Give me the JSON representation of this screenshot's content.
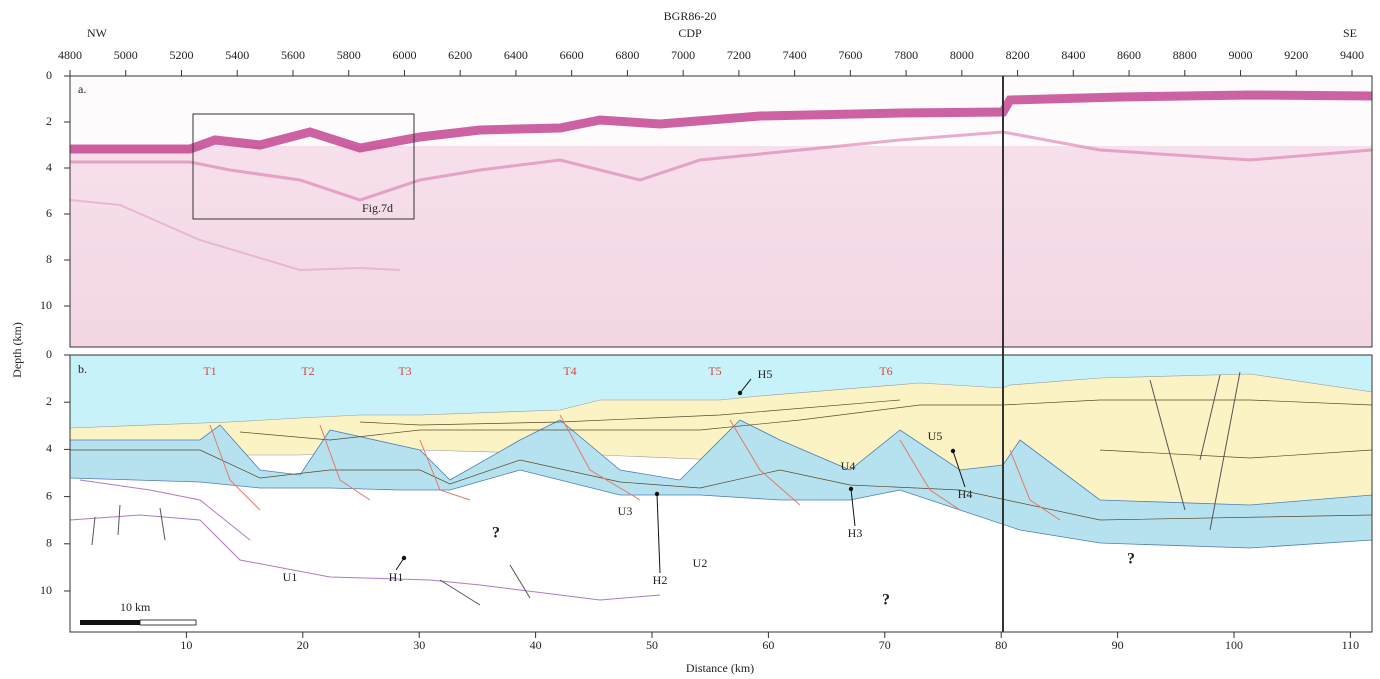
{
  "header": {
    "title": "BGR86-20",
    "subtitle": "CDP",
    "left": "NW",
    "right": "SE"
  },
  "cdp_ticks": [
    4800,
    5000,
    5200,
    5400,
    5600,
    5800,
    6000,
    6200,
    6400,
    6600,
    6800,
    7000,
    7200,
    7400,
    7600,
    7800,
    8000,
    8200,
    8400,
    8600,
    8800,
    9000,
    9200,
    9400
  ],
  "depth_axis": {
    "label": "Depth (km)",
    "ticks": [
      0,
      2,
      4,
      6,
      8,
      10
    ]
  },
  "distance_axis": {
    "label": "Distance (km)",
    "ticks": [
      10,
      20,
      30,
      40,
      50,
      60,
      70,
      80,
      90,
      100,
      110
    ]
  },
  "panel_a": {
    "label": "a.",
    "box_label": "Fig.7d"
  },
  "panel_b": {
    "label": "b.",
    "transects": [
      "T1",
      "T2",
      "T3",
      "T4",
      "T5",
      "T6"
    ],
    "horizons": [
      "H1",
      "H2",
      "H3",
      "H4",
      "H5"
    ],
    "units": [
      "U1",
      "U2",
      "U3",
      "U4",
      "U5"
    ],
    "unknowns": [
      "?",
      "?",
      "?"
    ],
    "scale_bar": "10 km"
  }
}
